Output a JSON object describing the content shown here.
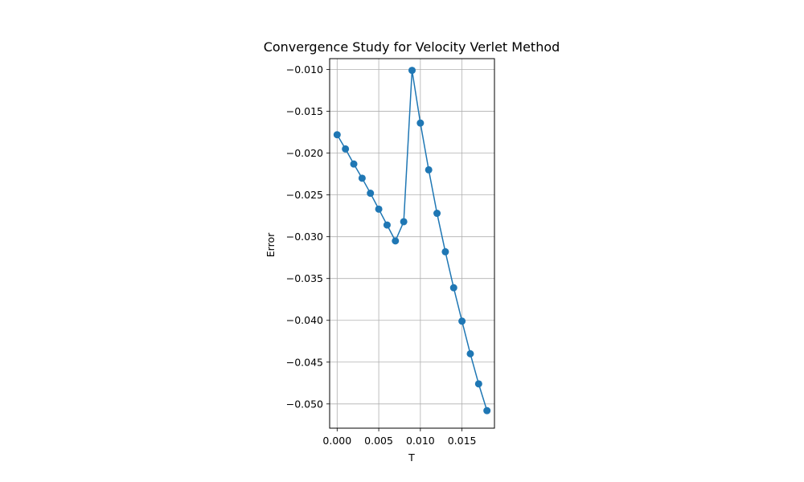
{
  "chart_data": {
    "type": "line",
    "title": "Convergence Study for Velocity Verlet Method",
    "xlabel": "T",
    "ylabel": "Error",
    "grid": true,
    "marker": "circle",
    "color": "#1f77b4",
    "xlim": [
      -0.0009,
      0.0189
    ],
    "ylim": [
      -0.0529,
      -0.0087
    ],
    "xticks": [
      0.0,
      0.005,
      0.01,
      0.015
    ],
    "xtick_labels": [
      "0.000",
      "0.005",
      "0.010",
      "0.015"
    ],
    "yticks": [
      -0.01,
      -0.015,
      -0.02,
      -0.025,
      -0.03,
      -0.035,
      -0.04,
      -0.045,
      -0.05
    ],
    "ytick_labels": [
      "−0.010",
      "−0.015",
      "−0.020",
      "−0.025",
      "−0.030",
      "−0.035",
      "−0.040",
      "−0.045",
      "−0.050"
    ],
    "series": [
      {
        "x": [
          0.0,
          0.001,
          0.002,
          0.003,
          0.004,
          0.005,
          0.006,
          0.007,
          0.008,
          0.009,
          0.01,
          0.011,
          0.012,
          0.013,
          0.014,
          0.015,
          0.016,
          0.017,
          0.018
        ],
        "y": [
          -0.0178,
          -0.0195,
          -0.0213,
          -0.023,
          -0.0248,
          -0.0267,
          -0.0286,
          -0.0305,
          -0.0282,
          -0.0101,
          -0.0164,
          -0.022,
          -0.0272,
          -0.0318,
          -0.0361,
          -0.0401,
          -0.044,
          -0.0476,
          -0.0508
        ]
      }
    ]
  }
}
